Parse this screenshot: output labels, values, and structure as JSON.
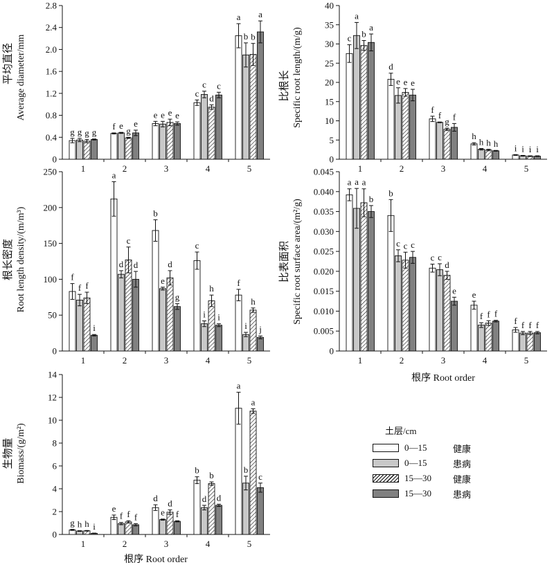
{
  "legend": {
    "title": "土层/cm",
    "items": [
      {
        "depth": "0—15",
        "status": "健康",
        "style": "white"
      },
      {
        "depth": "0—15",
        "status": "患病",
        "style": "light"
      },
      {
        "depth": "15—30",
        "status": "健康",
        "style": "hatch"
      },
      {
        "depth": "15—30",
        "status": "患病",
        "style": "dark"
      }
    ]
  },
  "chart_data": [
    {
      "type": "bar",
      "ylabel_cn": "平均直径",
      "ylabel_en": "Average diameter/mm",
      "xlabel": "",
      "categories": [
        "1",
        "2",
        "3",
        "4",
        "5"
      ],
      "ylim": [
        0,
        2.8
      ],
      "yticks": [
        "0",
        "0.4",
        "0.8",
        "1.2",
        "1.6",
        "2.0",
        "2.4",
        "2.8"
      ],
      "series": [
        {
          "values": [
            0.34,
            0.47,
            0.65,
            1.03,
            2.25
          ],
          "errors": [
            0.04,
            0.01,
            0.04,
            0.05,
            0.22
          ],
          "letters": [
            "g",
            "f",
            "e",
            "c",
            "a"
          ]
        },
        {
          "values": [
            0.35,
            0.48,
            0.64,
            1.18,
            1.9
          ],
          "errors": [
            0.03,
            0.01,
            0.05,
            0.06,
            0.22
          ],
          "letters": [
            "g",
            "e",
            "e",
            "c",
            "b"
          ]
        },
        {
          "values": [
            0.33,
            0.39,
            0.67,
            0.95,
            1.91
          ],
          "errors": [
            0.03,
            0.01,
            0.06,
            0.04,
            0.2
          ],
          "letters": [
            "g",
            "g",
            "e",
            "d",
            "b"
          ]
        },
        {
          "values": [
            0.36,
            0.48,
            0.65,
            1.17,
            2.32
          ],
          "errors": [
            0.01,
            0.05,
            0.03,
            0.05,
            0.2
          ],
          "letters": [
            "g",
            "e",
            "e",
            "c",
            "a"
          ]
        }
      ]
    },
    {
      "type": "bar",
      "ylabel_cn": "比根长",
      "ylabel_en": "Specific root length/(m/g)",
      "xlabel": "",
      "categories": [
        "1",
        "2",
        "3",
        "4",
        "5"
      ],
      "ylim": [
        0,
        40
      ],
      "yticks": [
        "0",
        "5",
        "10",
        "15",
        "20",
        "25",
        "30",
        "35",
        "40"
      ],
      "series": [
        {
          "values": [
            27.5,
            20.8,
            10.5,
            4.0,
            1.1
          ],
          "errors": [
            2.3,
            1.6,
            0.7,
            0.3,
            0.1
          ],
          "letters": [
            "c",
            "d",
            "f",
            "h",
            "i"
          ]
        },
        {
          "values": [
            32.2,
            16.6,
            9.6,
            2.6,
            0.9
          ],
          "errors": [
            3.4,
            2.0,
            0.1,
            0.2,
            0.1
          ],
          "letters": [
            "a",
            "e",
            "f",
            "h",
            "i"
          ]
        },
        {
          "values": [
            29.6,
            17.4,
            7.8,
            2.4,
            0.8
          ],
          "errors": [
            1.3,
            1.0,
            0.3,
            0.2,
            0.1
          ],
          "letters": [
            "b",
            "e",
            "g",
            "h",
            "i"
          ]
        },
        {
          "values": [
            30.4,
            16.7,
            8.3,
            2.2,
            0.8
          ],
          "errors": [
            2.2,
            1.5,
            1.0,
            0.1,
            0.1
          ],
          "letters": [
            "a",
            "e",
            "f",
            "h",
            "i"
          ]
        }
      ]
    },
    {
      "type": "bar",
      "ylabel_cn": "根长密度",
      "ylabel_en": "Root length density/(m/m³)",
      "xlabel": "",
      "categories": [
        "1",
        "2",
        "3",
        "4",
        "5"
      ],
      "ylim": [
        0,
        250
      ],
      "yticks": [
        "0",
        "50",
        "100",
        "150",
        "200",
        "250"
      ],
      "series": [
        {
          "values": [
            83,
            212,
            168,
            126,
            78
          ],
          "errors": [
            11,
            24,
            15,
            12,
            8
          ],
          "letters": [
            "f",
            "a",
            "b",
            "c",
            "f"
          ]
        },
        {
          "values": [
            71,
            107,
            87,
            38,
            23
          ],
          "errors": [
            8,
            5,
            2,
            4,
            3
          ],
          "letters": [
            "f",
            "d",
            "e",
            "i",
            "i"
          ]
        },
        {
          "values": [
            74,
            127,
            102,
            70,
            57
          ],
          "errors": [
            8,
            18,
            10,
            8,
            3
          ],
          "letters": [
            "f",
            "c",
            "d",
            "h",
            "h"
          ]
        },
        {
          "values": [
            22,
            100,
            62,
            36,
            19
          ],
          "errors": [
            1,
            11,
            4,
            2,
            2
          ],
          "letters": [
            "i",
            "d",
            "g",
            "i",
            "j"
          ]
        }
      ]
    },
    {
      "type": "bar",
      "ylabel_cn": "比表面积",
      "ylabel_en": "Specific root surface area/(m²/g)",
      "xlabel": "根序 Root order",
      "categories": [
        "1",
        "2",
        "3",
        "4",
        "5"
      ],
      "ylim": [
        0,
        0.045
      ],
      "yticks": [
        "0",
        "0.005",
        "0.010",
        "0.015",
        "0.020",
        "0.025",
        "0.030",
        "0.035",
        "0.040",
        "0.045"
      ],
      "series": [
        {
          "values": [
            0.0392,
            0.034,
            0.0208,
            0.0115,
            0.0053
          ],
          "errors": [
            0.0015,
            0.004,
            0.001,
            0.001,
            0.0006
          ],
          "letters": [
            "a",
            "b",
            "c",
            "e",
            "f"
          ]
        },
        {
          "values": [
            0.0358,
            0.0239,
            0.0204,
            0.0065,
            0.0045
          ],
          "errors": [
            0.005,
            0.0015,
            0.0015,
            0.0006,
            0.0004
          ],
          "letters": [
            "a",
            "c",
            "c",
            "f",
            "f"
          ]
        },
        {
          "values": [
            0.0372,
            0.0228,
            0.019,
            0.007,
            0.0045
          ],
          "errors": [
            0.0035,
            0.002,
            0.001,
            0.0006,
            0.0004
          ],
          "letters": [
            "a",
            "c",
            "d",
            "f",
            "f"
          ]
        },
        {
          "values": [
            0.035,
            0.0235,
            0.0125,
            0.0075,
            0.0046
          ],
          "errors": [
            0.0015,
            0.0015,
            0.001,
            0.0002,
            0.0003
          ],
          "letters": [
            "b",
            "c",
            "e",
            "f",
            "f"
          ]
        }
      ]
    },
    {
      "type": "bar",
      "ylabel_cn": "生物量",
      "ylabel_en": "Biomass/(g/m²)",
      "xlabel": "根序 Root order",
      "categories": [
        "1",
        "2",
        "3",
        "4",
        "5"
      ],
      "ylim": [
        0,
        14
      ],
      "yticks": [
        "0",
        "2",
        "4",
        "6",
        "8",
        "10",
        "12",
        "14"
      ],
      "series": [
        {
          "values": [
            0.4,
            1.5,
            2.35,
            4.75,
            11.05
          ],
          "errors": [
            0.05,
            0.2,
            0.25,
            0.3,
            1.4
          ],
          "letters": [
            "g",
            "e",
            "d",
            "b",
            "a"
          ]
        },
        {
          "values": [
            0.3,
            0.95,
            1.3,
            2.35,
            4.5
          ],
          "errors": [
            0.03,
            0.1,
            0.05,
            0.2,
            0.6
          ],
          "letters": [
            "h",
            "f",
            "e",
            "d",
            "b"
          ]
        },
        {
          "values": [
            0.32,
            1.1,
            1.95,
            4.45,
            10.8
          ],
          "errors": [
            0.03,
            0.1,
            0.2,
            0.15,
            0.2
          ],
          "letters": [
            "h",
            "f",
            "d",
            "b",
            "a"
          ]
        },
        {
          "values": [
            0.1,
            0.85,
            1.15,
            2.55,
            4.1
          ],
          "errors": [
            0.02,
            0.1,
            0.05,
            0.1,
            0.4
          ],
          "letters": [
            "i",
            "f",
            "f",
            "d",
            "c"
          ]
        }
      ]
    }
  ]
}
